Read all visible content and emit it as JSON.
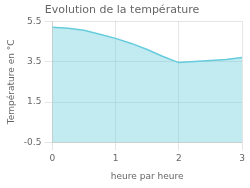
{
  "chart_data": {
    "type": "area",
    "title": "Evolution de la température",
    "xlabel": "heure par heure",
    "ylabel": "Température en °C",
    "x": [
      0,
      0.25,
      0.5,
      0.75,
      1.0,
      1.25,
      1.5,
      1.75,
      2.0,
      2.25,
      2.5,
      2.75,
      3.0
    ],
    "values": [
      5.2,
      5.15,
      5.05,
      4.85,
      4.65,
      4.4,
      4.1,
      3.75,
      3.45,
      3.5,
      3.55,
      3.6,
      3.7
    ],
    "color": "#66ccdd",
    "xlim": [
      0,
      3
    ],
    "ylim": [
      -0.5,
      5.5
    ],
    "xticks": [
      0,
      1,
      2,
      3
    ],
    "yticks": [
      -0.5,
      1.5,
      3.5,
      5.5
    ],
    "grid": true
  }
}
